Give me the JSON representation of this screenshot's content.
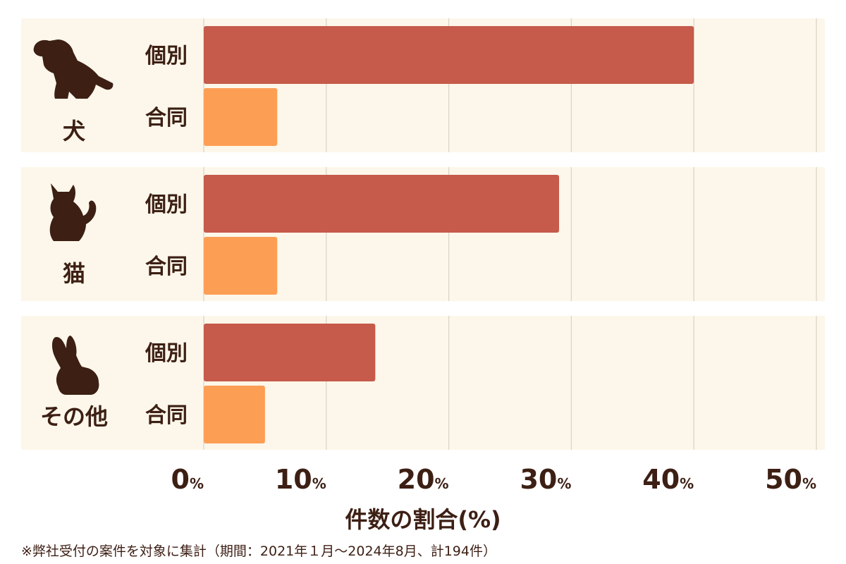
{
  "chart_data": {
    "type": "bar",
    "orientation": "horizontal",
    "xlabel": "件数の割合(%)",
    "xlim": [
      0,
      50
    ],
    "xticks": [
      0,
      10,
      20,
      30,
      40,
      50
    ],
    "tick_suffix": "%",
    "grid": true,
    "groups": [
      {
        "name": "犬",
        "icon": "dog-icon",
        "bars": [
          {
            "label": "個別",
            "value": 40
          },
          {
            "label": "合同",
            "value": 6
          }
        ]
      },
      {
        "name": "猫",
        "icon": "cat-icon",
        "bars": [
          {
            "label": "個別",
            "value": 29
          },
          {
            "label": "合同",
            "value": 6
          }
        ]
      },
      {
        "name": "その他",
        "icon": "rabbit-icon",
        "bars": [
          {
            "label": "個別",
            "value": 14
          },
          {
            "label": "合同",
            "value": 5
          }
        ]
      }
    ],
    "colors": {
      "個別": "#c65a4b",
      "合同": "#fd9e55",
      "panel_bg": "#fcf7ea",
      "grid": "#d8d3c6",
      "text": "#3d1f14"
    }
  },
  "footnote": "※弊社受付の案件を対象に集計（期間：2021年１月〜2024年8月、計194件）"
}
